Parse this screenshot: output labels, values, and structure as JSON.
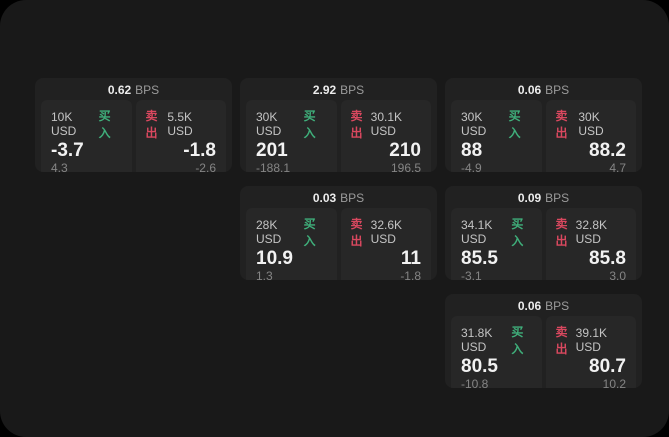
{
  "labels": {
    "bps_unit": "BPS",
    "buy": "买入",
    "sell": "卖出"
  },
  "colors": {
    "buy_green": "#3fae7a",
    "sell_red": "#d9485f",
    "screen_bg": "#191919",
    "card_bg": "#212121",
    "tile_bg": "#272727"
  },
  "cards": [
    {
      "spread": "0.62",
      "buy": {
        "size": "10K USD",
        "price": "-3.7",
        "skew": "4.3"
      },
      "sell": {
        "size": "5.5K USD",
        "price": "-1.8",
        "skew": "-2.6"
      }
    },
    {
      "spread": "2.92",
      "buy": {
        "size": "30K USD",
        "price": "201",
        "skew": "-188.1"
      },
      "sell": {
        "size": "30.1K USD",
        "price": "210",
        "skew": "196.5"
      }
    },
    {
      "spread": "0.06",
      "buy": {
        "size": "30K USD",
        "price": "88",
        "skew": "-4.9"
      },
      "sell": {
        "size": "30K USD",
        "price": "88.2",
        "skew": "4.7"
      }
    },
    {
      "spread": "0.03",
      "buy": {
        "size": "28K USD",
        "price": "10.9",
        "skew": "1.3"
      },
      "sell": {
        "size": "32.6K USD",
        "price": "11",
        "skew": "-1.8"
      }
    },
    {
      "spread": "0.09",
      "buy": {
        "size": "34.1K USD",
        "price": "85.5",
        "skew": "-3.1"
      },
      "sell": {
        "size": "32.8K USD",
        "price": "85.8",
        "skew": "3.0"
      }
    },
    {
      "spread": "0.06",
      "buy": {
        "size": "31.8K USD",
        "price": "80.5",
        "skew": "-10.8"
      },
      "sell": {
        "size": "39.1K USD",
        "price": "80.7",
        "skew": "10.2"
      }
    }
  ]
}
